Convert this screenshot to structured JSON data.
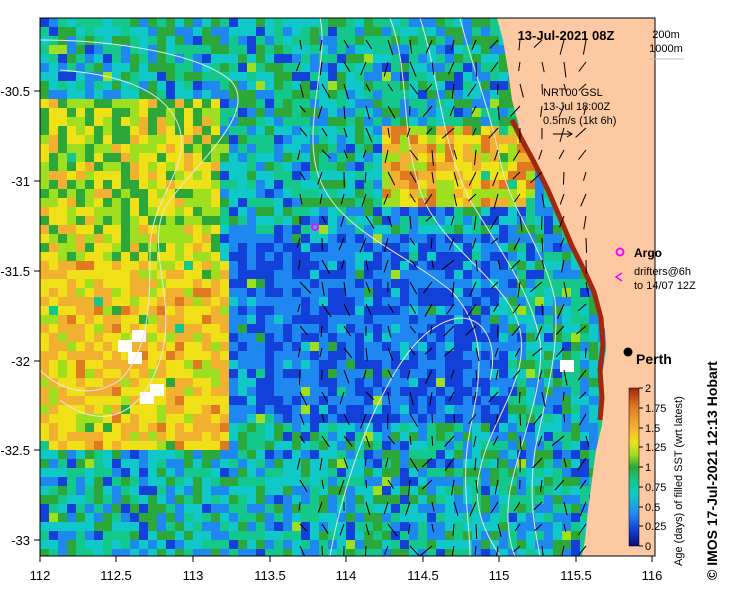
{
  "map": {
    "date_label": "13-Jul-2021 08Z",
    "isobath_labels": [
      "200m",
      "1000m"
    ],
    "current_source": "NRT00 GSL",
    "current_time": "13-Jul 18:00Z",
    "current_scale": "0.5m/s (1kt 6h)",
    "argo_label": "Argo",
    "drifters_line1": "drifters@6h",
    "drifters_line2": "to 14/07 12Z",
    "city_label": "Perth",
    "x_ticks": [
      "112",
      "112.5",
      "113",
      "113.5",
      "114",
      "114.5",
      "115",
      "115.5",
      "116"
    ],
    "y_ticks": [
      "-30.5",
      "-31",
      "-31.5",
      "-32",
      "-32.5",
      "-33"
    ],
    "credit": "© IMOS 17-Jul-2021 12:13 Hobart"
  },
  "colorbar": {
    "title": "Age (days) of filled SST (wrt latest)",
    "ticks": [
      "0",
      "0.25",
      "0.5",
      "0.75",
      "1",
      "1.25",
      "1.5",
      "1.75",
      "2"
    ],
    "range": [
      0,
      2
    ]
  },
  "colors": {
    "land": "#fdc9a3",
    "cbar_stops": [
      "#0a0a78",
      "#1240d8",
      "#1e88f0",
      "#10c8c8",
      "#14c88c",
      "#2ca83a",
      "#9ee020",
      "#f0e018",
      "#f2b030",
      "#e07a22",
      "#a0280c"
    ],
    "argo": "#ff00ff",
    "contour": "#e8e8e8"
  }
}
